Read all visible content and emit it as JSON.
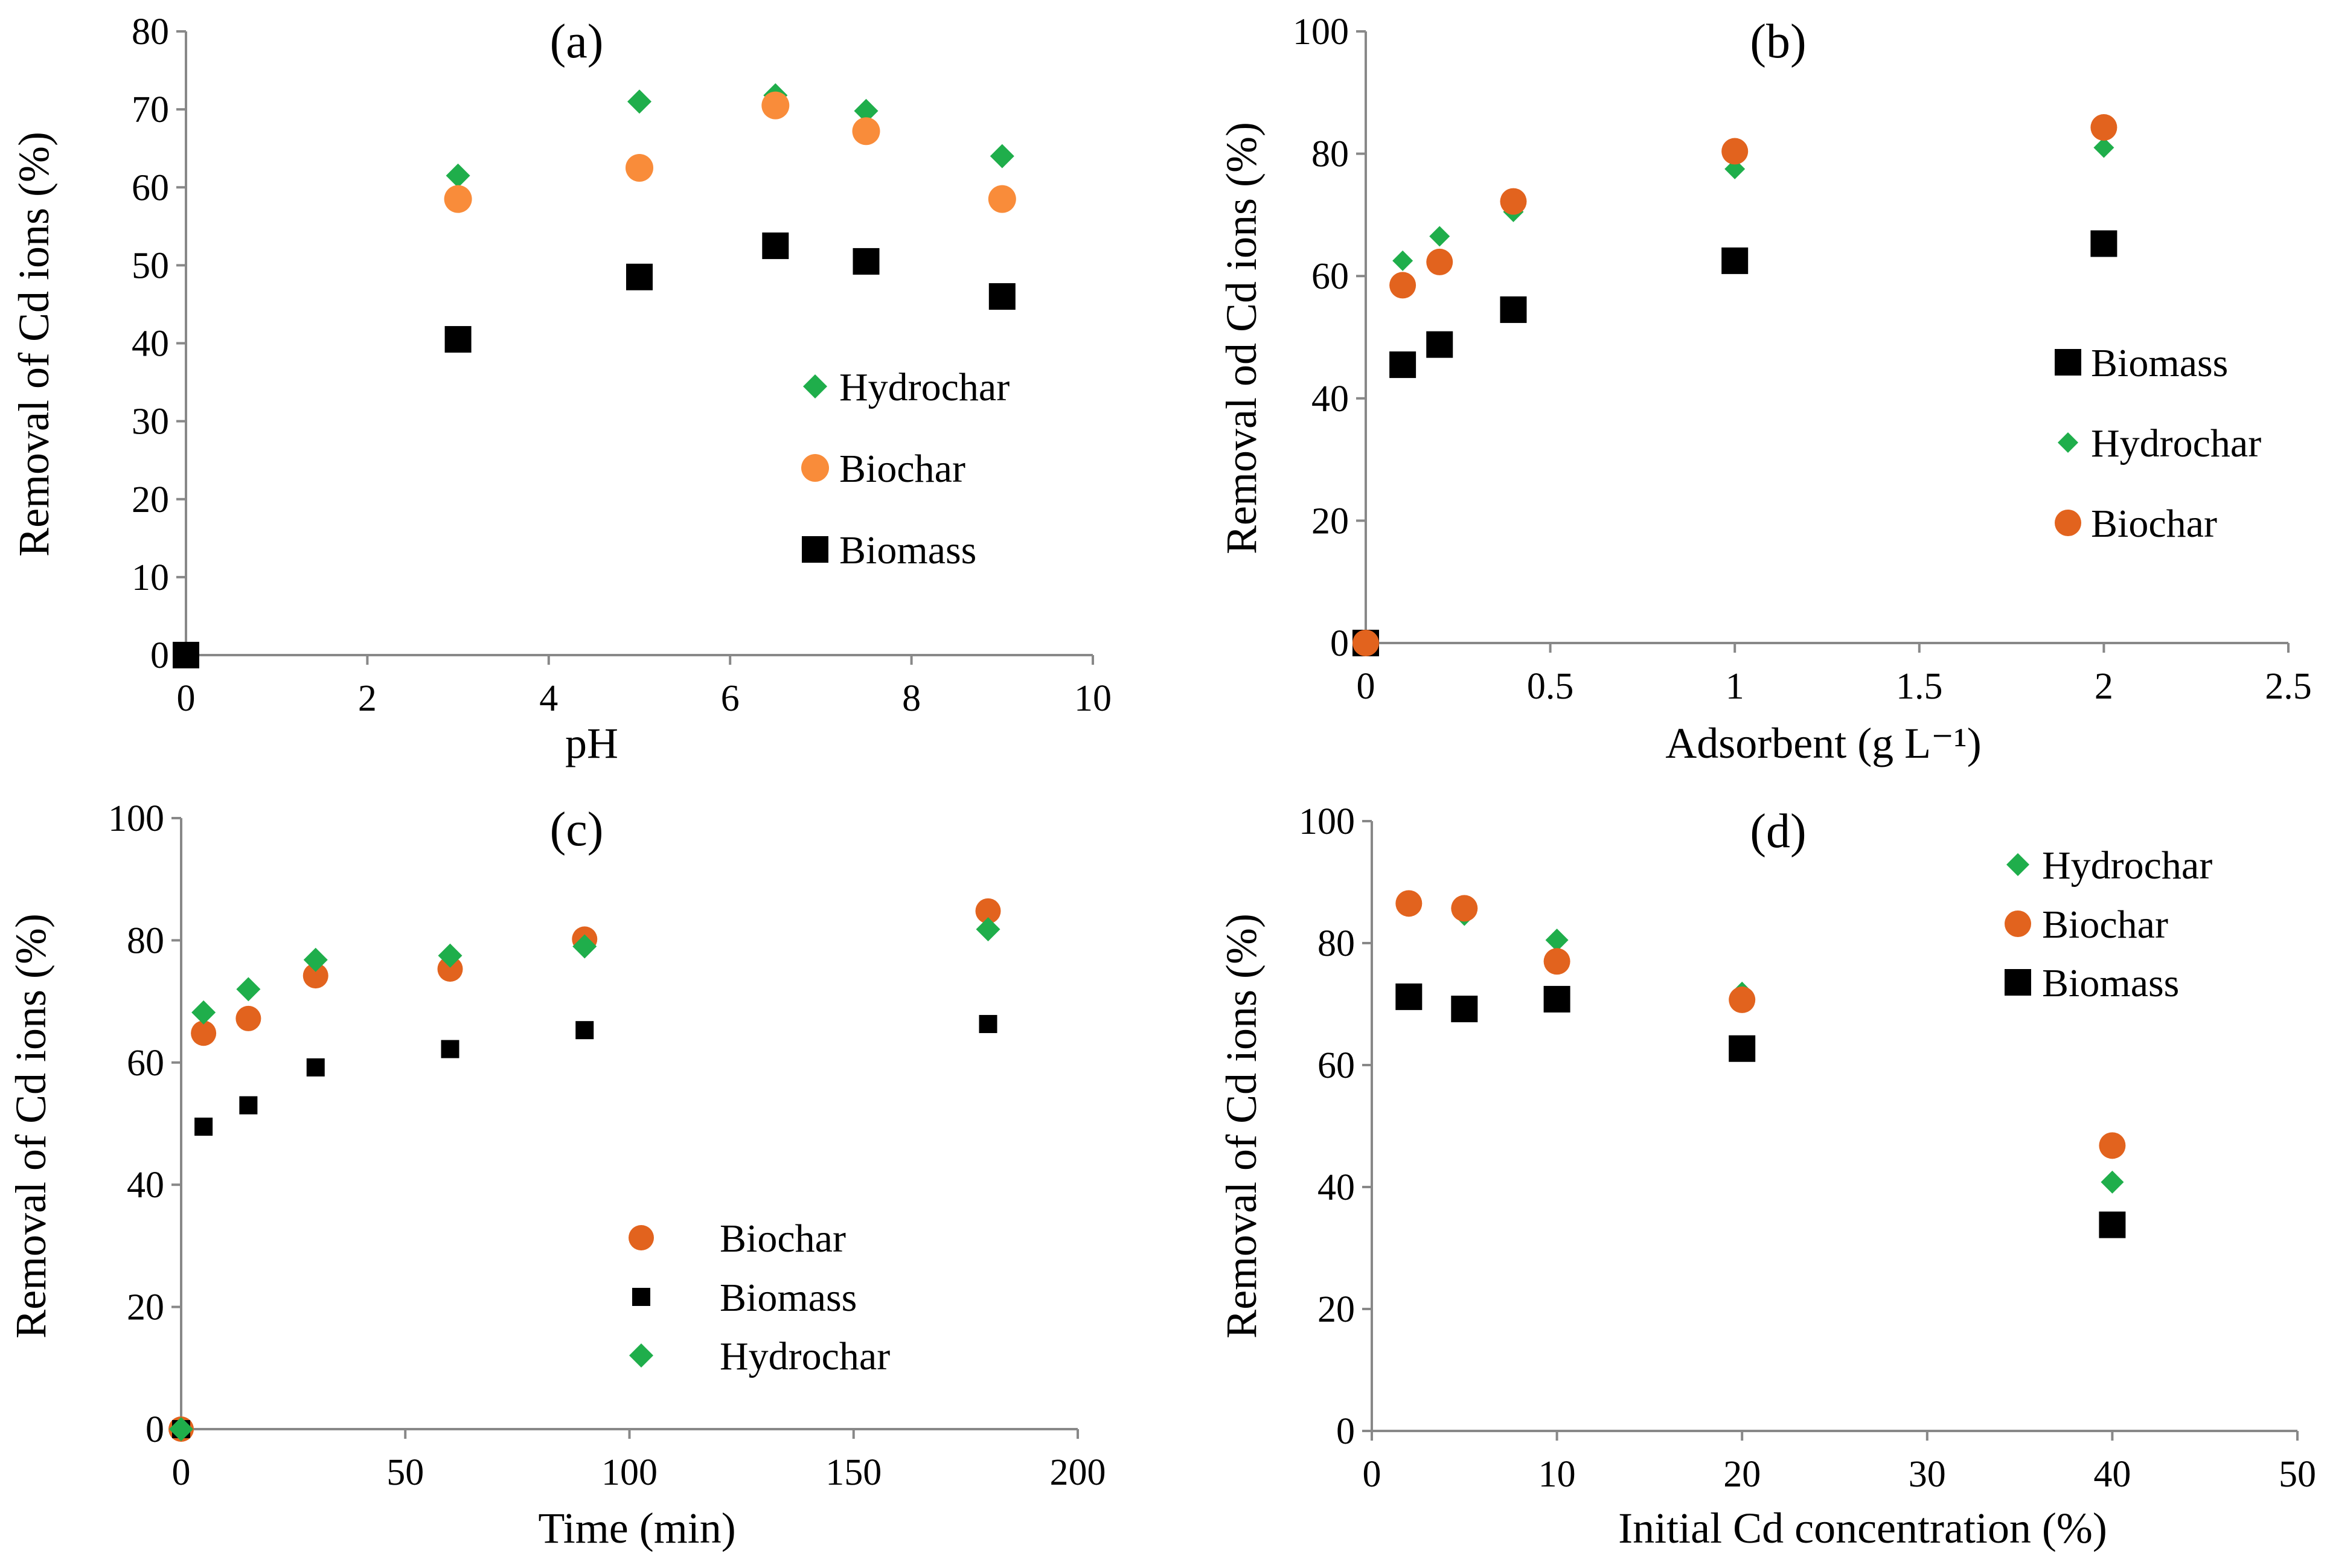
{
  "colors": {
    "hydrochar": "#1fae4b",
    "biochar_a": "#f98c3a",
    "biochar": "#e2631e",
    "biomass": "#000000",
    "axis": "#888888"
  },
  "chart_data": [
    {
      "type": "scatter",
      "panel": "(a)",
      "xlabel": "pH",
      "ylabel": "Removal of Cd ions (%)",
      "xlim": [
        0,
        10
      ],
      "ylim": [
        0,
        80
      ],
      "xticks": [
        "0",
        "2",
        "4",
        "6",
        "8",
        "10"
      ],
      "yticks": [
        "0",
        "10",
        "20",
        "30",
        "40",
        "50",
        "60",
        "70",
        "80"
      ],
      "legend_position": "right-middle",
      "legend": [
        "Hydrochar",
        "Biochar",
        "Biomass"
      ],
      "series": [
        {
          "name": "Hydrochar",
          "marker": "diamond",
          "color": "#1fae4b",
          "x": [
            3,
            5,
            6.5,
            7.5,
            9
          ],
          "y": [
            61.5,
            71,
            71.8,
            69.8,
            64
          ]
        },
        {
          "name": "Biochar",
          "marker": "circle",
          "color": "#f98c3a",
          "x": [
            3,
            5,
            6.5,
            7.5,
            9
          ],
          "y": [
            58.5,
            62.5,
            70.5,
            67.2,
            58.5
          ]
        },
        {
          "name": "Biomass",
          "marker": "square",
          "color": "#000000",
          "x": [
            0,
            3,
            5,
            6.5,
            7.5,
            9
          ],
          "y": [
            0,
            40.5,
            48.5,
            52.5,
            50.5,
            46
          ]
        }
      ]
    },
    {
      "type": "scatter",
      "panel": "(b)",
      "xlabel": "Adsorbent (g L⁻¹)",
      "ylabel": "Removal od Cd ions (%)",
      "xlim": [
        0,
        2.5
      ],
      "ylim": [
        0,
        100
      ],
      "xticks": [
        "0",
        "0.5",
        "1",
        "1.5",
        "2",
        "2.5"
      ],
      "yticks": [
        "0",
        "20",
        "40",
        "60",
        "80",
        "100"
      ],
      "legend_position": "right-middle",
      "legend": [
        "Biomass",
        "Hydrochar",
        "Biochar"
      ],
      "series": [
        {
          "name": "Biomass",
          "marker": "square",
          "color": "#000000",
          "x": [
            0,
            0.1,
            0.2,
            0.4,
            1,
            2
          ],
          "y": [
            0,
            45.5,
            48.8,
            54.5,
            62.5,
            65.3
          ]
        },
        {
          "name": "Hydrochar",
          "marker": "diamond",
          "color": "#1fae4b",
          "x": [
            0,
            0.1,
            0.2,
            0.4,
            1,
            2
          ],
          "y": [
            0,
            62.5,
            66.5,
            70.5,
            77.5,
            81
          ]
        },
        {
          "name": "Biochar",
          "marker": "circle",
          "color": "#e2631e",
          "x": [
            0,
            0.1,
            0.2,
            0.4,
            1,
            2
          ],
          "y": [
            0,
            58.5,
            62.3,
            72.2,
            80.4,
            84.3
          ]
        }
      ]
    },
    {
      "type": "scatter",
      "panel": "(c)",
      "xlabel": "Time (min)",
      "ylabel": "Removal of Cd ions (%)",
      "xlim": [
        0,
        200
      ],
      "ylim": [
        0,
        100
      ],
      "xticks": [
        "0",
        "50",
        "100",
        "150",
        "200"
      ],
      "yticks": [
        "0",
        "20",
        "40",
        "60",
        "80",
        "100"
      ],
      "legend_position": "center-bottom",
      "legend": [
        "Biochar",
        "Biomass",
        "Hydrochar"
      ],
      "series": [
        {
          "name": "Biochar",
          "marker": "circle",
          "color": "#e2631e",
          "x": [
            0,
            5,
            15,
            30,
            60,
            90,
            180
          ],
          "y": [
            0,
            64.8,
            67.2,
            74.2,
            75.3,
            80.2,
            84.8
          ]
        },
        {
          "name": "Biomass",
          "marker": "square",
          "color": "#000000",
          "x": [
            0,
            5,
            15,
            30,
            60,
            90,
            180
          ],
          "y": [
            0,
            49.5,
            53,
            59.2,
            62.2,
            65.3,
            66.3
          ]
        },
        {
          "name": "Hydrochar",
          "marker": "diamond",
          "color": "#1fae4b",
          "x": [
            0,
            5,
            15,
            30,
            60,
            90,
            180
          ],
          "y": [
            0,
            68.2,
            72,
            76.8,
            77.5,
            79,
            81.8
          ]
        }
      ]
    },
    {
      "type": "scatter",
      "panel": "(d)",
      "xlabel": "Initial Cd concentration (%)",
      "ylabel": "Removal of Cd ions (%)",
      "xlim": [
        0,
        50
      ],
      "ylim": [
        0,
        100
      ],
      "xticks": [
        "0",
        "10",
        "20",
        "30",
        "40",
        "50"
      ],
      "yticks": [
        "0",
        "20",
        "40",
        "60",
        "80",
        "100"
      ],
      "legend_position": "top-right",
      "legend": [
        "Hydrochar",
        "Biochar",
        "Biomass"
      ],
      "series": [
        {
          "name": "Hydrochar",
          "marker": "diamond",
          "color": "#1fae4b",
          "x": [
            2,
            5,
            10,
            20,
            40
          ],
          "y": [
            86.2,
            84.7,
            80.5,
            71.8,
            40.8
          ]
        },
        {
          "name": "Biochar",
          "marker": "circle",
          "color": "#e2631e",
          "x": [
            2,
            5,
            10,
            20,
            40
          ],
          "y": [
            86.5,
            85.7,
            77,
            70.7,
            46.8
          ]
        },
        {
          "name": "Biomass",
          "marker": "square",
          "color": "#000000",
          "x": [
            2,
            5,
            10,
            20,
            40
          ],
          "y": [
            71.2,
            69.2,
            70.8,
            62.7,
            33.8
          ]
        }
      ]
    }
  ]
}
